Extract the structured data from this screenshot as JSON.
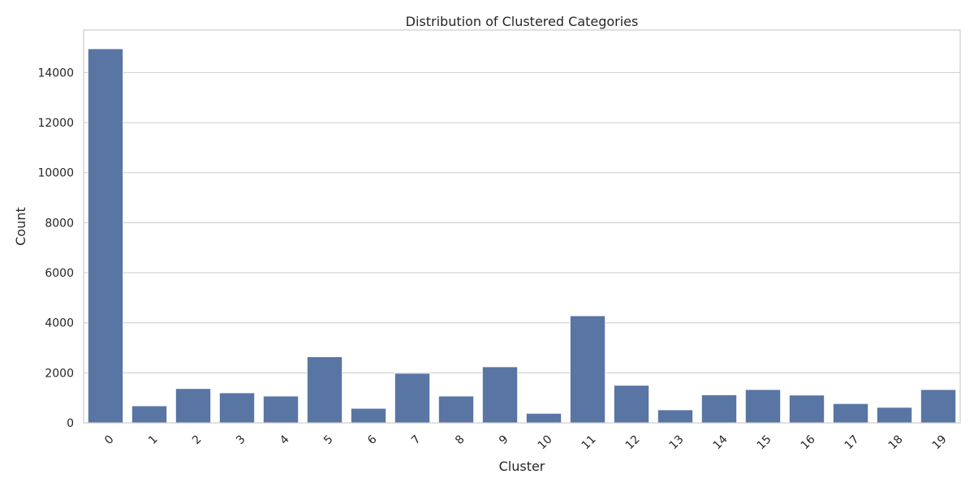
{
  "chart_data": {
    "type": "bar",
    "title": "Distribution of Clustered Categories",
    "xlabel": "Cluster",
    "ylabel": "Count",
    "categories": [
      "0",
      "1",
      "2",
      "3",
      "4",
      "5",
      "6",
      "7",
      "8",
      "9",
      "10",
      "11",
      "12",
      "13",
      "14",
      "15",
      "16",
      "17",
      "18",
      "19"
    ],
    "values": [
      14950,
      680,
      1370,
      1200,
      1070,
      2640,
      580,
      1980,
      1070,
      2240,
      380,
      4280,
      1500,
      520,
      1120,
      1330,
      1110,
      770,
      620,
      1330
    ],
    "yticks": [
      0,
      2000,
      4000,
      6000,
      8000,
      10000,
      12000,
      14000
    ],
    "ylim": [
      0,
      15700
    ],
    "grid": true,
    "bar_color": "#5975a4",
    "tick_rotation": 45
  }
}
